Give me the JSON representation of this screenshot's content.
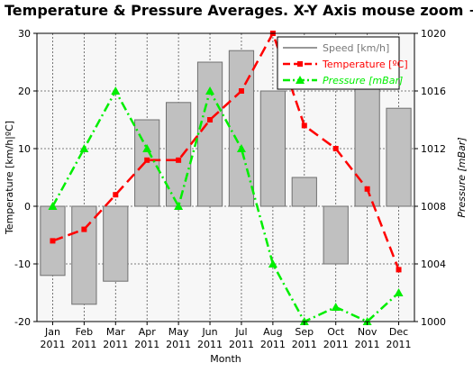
{
  "chart_data": {
    "type": "bar+line",
    "title": "Temperature & Pressure Averages. X-Y Axis mouse zoom + scroll",
    "xlabel": "Month",
    "ylabel_left": "Temperature [km/h|ºC]",
    "ylabel_right": "Pressure [mBar]",
    "categories": [
      [
        "Jan",
        "2011"
      ],
      [
        "Feb",
        "2011"
      ],
      [
        "Mar",
        "2011"
      ],
      [
        "Apr",
        "2011"
      ],
      [
        "May",
        "2011"
      ],
      [
        "Jun",
        "2011"
      ],
      [
        "Jul",
        "2011"
      ],
      [
        "Aug",
        "2011"
      ],
      [
        "Sep",
        "2011"
      ],
      [
        "Oct",
        "2011"
      ],
      [
        "Nov",
        "2011"
      ],
      [
        "Dec",
        "2011"
      ]
    ],
    "left_axis": {
      "min": -20,
      "max": 30,
      "ticks": [
        -20,
        -10,
        0,
        10,
        20,
        30
      ]
    },
    "right_axis": {
      "min": 1000,
      "max": 1020,
      "ticks": [
        1000,
        1004,
        1008,
        1012,
        1016,
        1020
      ]
    },
    "grid": true,
    "legend_position": "top-right",
    "series": [
      {
        "name": "Speed [km/h]",
        "type": "bar",
        "axis": "left",
        "color": "#c0c0c0",
        "border": "#707070",
        "values": [
          -12,
          -17,
          -13,
          15,
          18,
          25,
          27,
          20,
          5,
          -10,
          21,
          17
        ]
      },
      {
        "name": "Temperature [ºC]",
        "type": "line",
        "axis": "left",
        "color": "#ff0000",
        "marker": "square",
        "dash": "dashed",
        "values": [
          -6,
          -4,
          2,
          8,
          8,
          15,
          20,
          30,
          14,
          10,
          3,
          -11
        ]
      },
      {
        "name": "Pressure [mBar]",
        "type": "line",
        "axis": "right",
        "color": "#00ee00",
        "marker": "triangle",
        "dash": "dash-dot",
        "values": [
          1008,
          1012,
          1016,
          1012,
          1008,
          1016,
          1012,
          1004,
          1000,
          1001,
          1000,
          1002
        ]
      }
    ]
  }
}
